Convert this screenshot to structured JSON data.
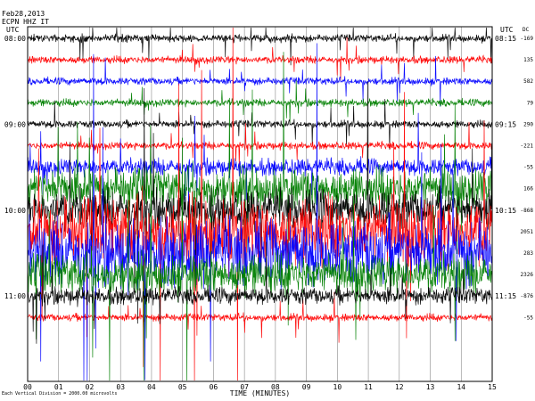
{
  "header": {
    "date": "Feb28,2013",
    "station": "ECPN HHZ IT",
    "left_tz": "UTC",
    "right_tz": "UTC",
    "dc_label": "DC"
  },
  "footer": {
    "division_note": "Each Vertical Division = 2000.00 microvolts"
  },
  "chart_data": {
    "type": "line",
    "title": "",
    "xlabel": "TIME (MINUTES)",
    "ylabel": "",
    "xlim": [
      0,
      15
    ],
    "x_ticks": [
      "00",
      "01",
      "02",
      "03",
      "04",
      "05",
      "06",
      "07",
      "08",
      "09",
      "10",
      "11",
      "12",
      "13",
      "14",
      "15"
    ],
    "grid": true,
    "left_time_labels": [
      "08:00",
      "09:00",
      "10:00",
      "11:00"
    ],
    "right_time_labels": [
      "08:15",
      "09:15",
      "10:15",
      "11:15"
    ],
    "dc_offsets": [
      "-169",
      "135",
      "582",
      "79",
      "290",
      "-221",
      "-55",
      "166",
      "-868",
      "2051",
      "283",
      "2326",
      "-876",
      "-55"
    ],
    "series": [
      {
        "color": "#000000",
        "amplitude": "low"
      },
      {
        "color": "#ff0000",
        "amplitude": "low"
      },
      {
        "color": "#0000ff",
        "amplitude": "low"
      },
      {
        "color": "#008000",
        "amplitude": "low"
      },
      {
        "color": "#000000",
        "amplitude": "low"
      },
      {
        "color": "#ff0000",
        "amplitude": "low"
      },
      {
        "color": "#0000ff",
        "amplitude": "medium"
      },
      {
        "color": "#008000",
        "amplitude": "high"
      },
      {
        "color": "#000000",
        "amplitude": "high"
      },
      {
        "color": "#ff0000",
        "amplitude": "very-high"
      },
      {
        "color": "#0000ff",
        "amplitude": "very-high"
      },
      {
        "color": "#008000",
        "amplitude": "high"
      },
      {
        "color": "#000000",
        "amplitude": "medium"
      },
      {
        "color": "#ff0000",
        "amplitude": "low"
      }
    ]
  }
}
